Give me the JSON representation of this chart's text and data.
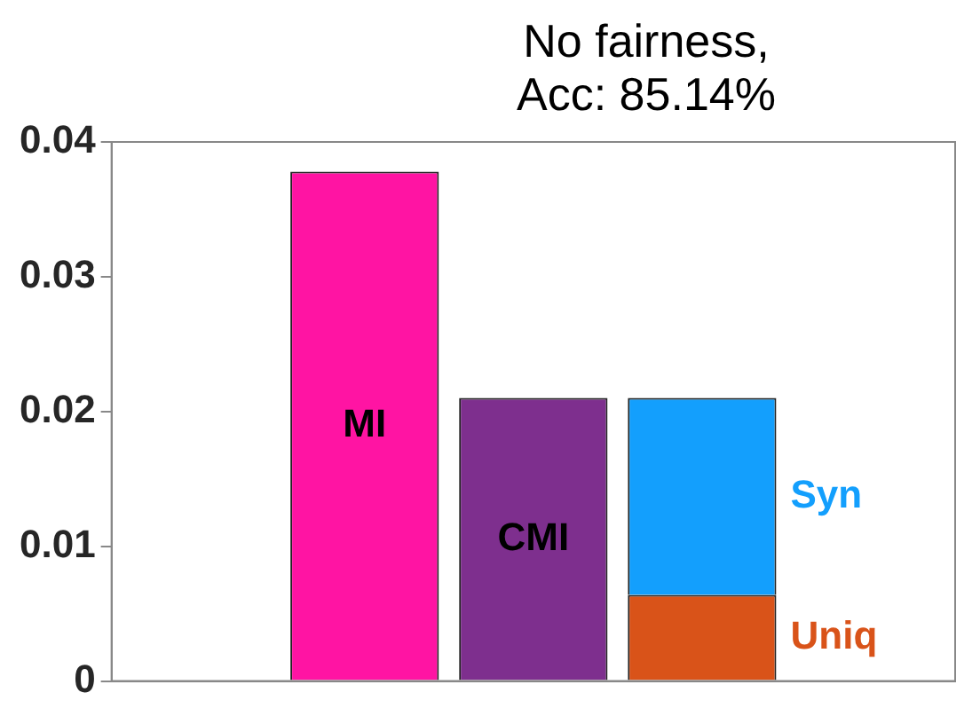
{
  "chart_data": {
    "type": "bar",
    "title": "No fairness,\nAcc: 85.14%",
    "categories": [
      null,
      null,
      null,
      null,
      null
    ],
    "stacked": true,
    "grid": false,
    "legend": false,
    "series": [
      {
        "name": "MI",
        "color": "#ff14a3",
        "values": [
          null,
          0.0378,
          null,
          null,
          null
        ]
      },
      {
        "name": "CMI",
        "color": "#7e2f8e",
        "values": [
          null,
          null,
          0.021,
          null,
          null
        ]
      },
      {
        "name": "Uniq",
        "color": "#d95319",
        "values": [
          null,
          null,
          null,
          0.0064,
          null
        ]
      },
      {
        "name": "Syn",
        "color": "#139ffd",
        "values": [
          null,
          null,
          null,
          0.0146,
          null
        ]
      }
    ],
    "ylim": [
      0,
      0.04
    ],
    "yticks": [
      0,
      0.01,
      0.02,
      0.03,
      0.04
    ]
  }
}
